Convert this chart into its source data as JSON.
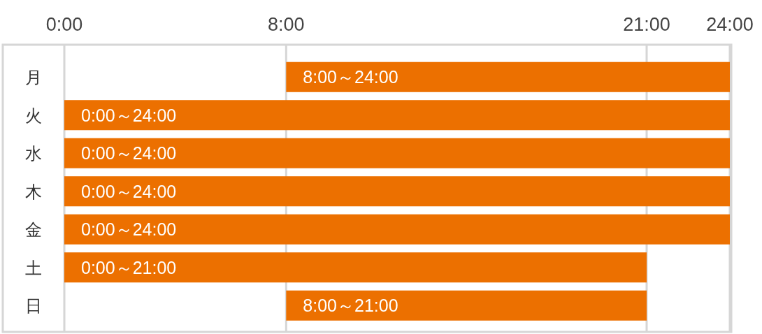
{
  "chart_data": {
    "type": "bar",
    "orientation": "horizontal",
    "categories": [
      "月",
      "火",
      "水",
      "木",
      "金",
      "土",
      "日"
    ],
    "base": [
      8,
      0,
      0,
      0,
      0,
      0,
      8
    ],
    "values": [
      16,
      24,
      24,
      24,
      24,
      21,
      13
    ],
    "color": "#ec7000",
    "value_labels": [
      "8:00～24:00",
      "0:00～24:00",
      "0:00～24:00",
      "0:00～24:00",
      "0:00～24:00",
      "0:00～21:00",
      "8:00～21:00"
    ],
    "xlim": [
      0,
      24
    ],
    "xticks": [
      {
        "value": 0,
        "label": "0:00"
      },
      {
        "value": 8,
        "label": "8:00"
      },
      {
        "value": 21,
        "label": "21:00"
      },
      {
        "value": 24,
        "label": "24:00"
      }
    ],
    "grid": "x"
  }
}
